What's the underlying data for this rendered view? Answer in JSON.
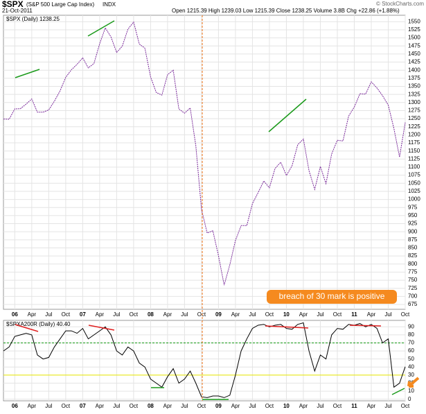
{
  "header": {
    "symbol": "$SPX",
    "name": "(S&P 500 Large Cap Index)",
    "exchange": "INDX",
    "date": "21-Oct-2011",
    "quote": "Open 1215.39  High 1239.03  Low 1215.39  Close 1238.25  Volume 3.8B  Chg +22.86 (+1.88%)",
    "credit": "© StockCharts.com"
  },
  "chart_data": [
    {
      "type": "line",
      "legend": "$SPX (Daily) 1238.25",
      "annotation": "breach of 30 mark is positive",
      "grid": true,
      "scale_side": "right",
      "categories": [
        null,
        null,
        "06",
        null,
        null,
        "Apr",
        null,
        null,
        "Jul",
        null,
        null,
        "Oct",
        null,
        null,
        "07",
        null,
        null,
        "Apr",
        null,
        null,
        "Jul",
        null,
        null,
        "Oct",
        null,
        null,
        "08",
        null,
        null,
        "Apr",
        null,
        null,
        "Jul",
        null,
        null,
        "Oct",
        null,
        null,
        "09",
        null,
        null,
        "Apr",
        null,
        null,
        "Jul",
        null,
        null,
        "Oct",
        null,
        null,
        "10",
        null,
        null,
        "Apr",
        null,
        null,
        "Jul",
        null,
        null,
        "Oct",
        null,
        null,
        "11",
        null,
        null,
        "Apr",
        null,
        null,
        "Jul",
        null,
        null,
        "Oct"
      ],
      "series": [
        {
          "name": "$SPX",
          "color": "#7a2a9a",
          "values": [
            1249,
            1248,
            1280,
            1281,
            1295,
            1311,
            1270,
            1270,
            1277,
            1304,
            1336,
            1378,
            1401,
            1418,
            1438,
            1407,
            1421,
            1482,
            1531,
            1503,
            1455,
            1474,
            1527,
            1549,
            1481,
            1468,
            1379,
            1331,
            1323,
            1386,
            1400,
            1280,
            1267,
            1283,
            1166,
            969,
            896,
            903,
            826,
            735,
            798,
            873,
            919,
            919,
            987,
            1021,
            1057,
            1036,
            1096,
            1115,
            1074,
            1104,
            1169,
            1187,
            1089,
            1031,
            1102,
            1049,
            1141,
            1183,
            1181,
            1258,
            1286,
            1327,
            1326,
            1364,
            1345,
            1321,
            1292,
            1219,
            1131,
            1238
          ]
        }
      ],
      "ylim": [
        660,
        1570
      ],
      "yticks": [
        675,
        700,
        725,
        750,
        775,
        800,
        825,
        850,
        875,
        900,
        925,
        950,
        975,
        1000,
        1025,
        1050,
        1075,
        1100,
        1125,
        1150,
        1175,
        1200,
        1225,
        1250,
        1275,
        1300,
        1325,
        1350,
        1375,
        1400,
        1425,
        1450,
        1475,
        1500,
        1525,
        1550
      ]
    },
    {
      "type": "line",
      "legend": "$SPXA200R (Daily) 40.40",
      "grid": true,
      "scale_side": "right",
      "ref_lines": [
        {
          "value": 70,
          "color": "#119911"
        },
        {
          "value": 30,
          "color": "#e8e800"
        }
      ],
      "categories": [
        null,
        null,
        "06",
        null,
        null,
        "Apr",
        null,
        null,
        "Jul",
        null,
        null,
        "Oct",
        null,
        null,
        "07",
        null,
        null,
        "Apr",
        null,
        null,
        "Jul",
        null,
        null,
        "Oct",
        null,
        null,
        "08",
        null,
        null,
        "Apr",
        null,
        null,
        "Jul",
        null,
        null,
        "Oct",
        null,
        null,
        "09",
        null,
        null,
        "Apr",
        null,
        null,
        "Jul",
        null,
        null,
        "Oct",
        null,
        null,
        "10",
        null,
        null,
        "Apr",
        null,
        null,
        "Jul",
        null,
        null,
        "Oct",
        null,
        null,
        "11",
        null,
        null,
        "Apr",
        null,
        null,
        "Jul",
        null,
        null,
        "Oct"
      ],
      "series": [
        {
          "name": "$SPXA200R",
          "color": "#000000",
          "values": [
            60,
            65,
            78,
            80,
            82,
            80,
            55,
            50,
            52,
            65,
            75,
            85,
            85,
            82,
            88,
            75,
            80,
            85,
            90,
            80,
            60,
            55,
            65,
            60,
            45,
            40,
            25,
            20,
            15,
            28,
            38,
            20,
            25,
            35,
            20,
            3,
            2,
            4,
            4,
            2,
            5,
            30,
            60,
            75,
            88,
            92,
            93,
            90,
            92,
            93,
            88,
            87,
            93,
            95,
            60,
            35,
            55,
            50,
            80,
            88,
            87,
            93,
            92,
            94,
            90,
            93,
            88,
            70,
            75,
            15,
            20,
            40.4
          ]
        }
      ],
      "ylim": [
        -2,
        98
      ],
      "yticks": [
        0,
        10,
        20,
        30,
        40,
        50,
        60,
        70,
        80,
        90
      ]
    }
  ]
}
